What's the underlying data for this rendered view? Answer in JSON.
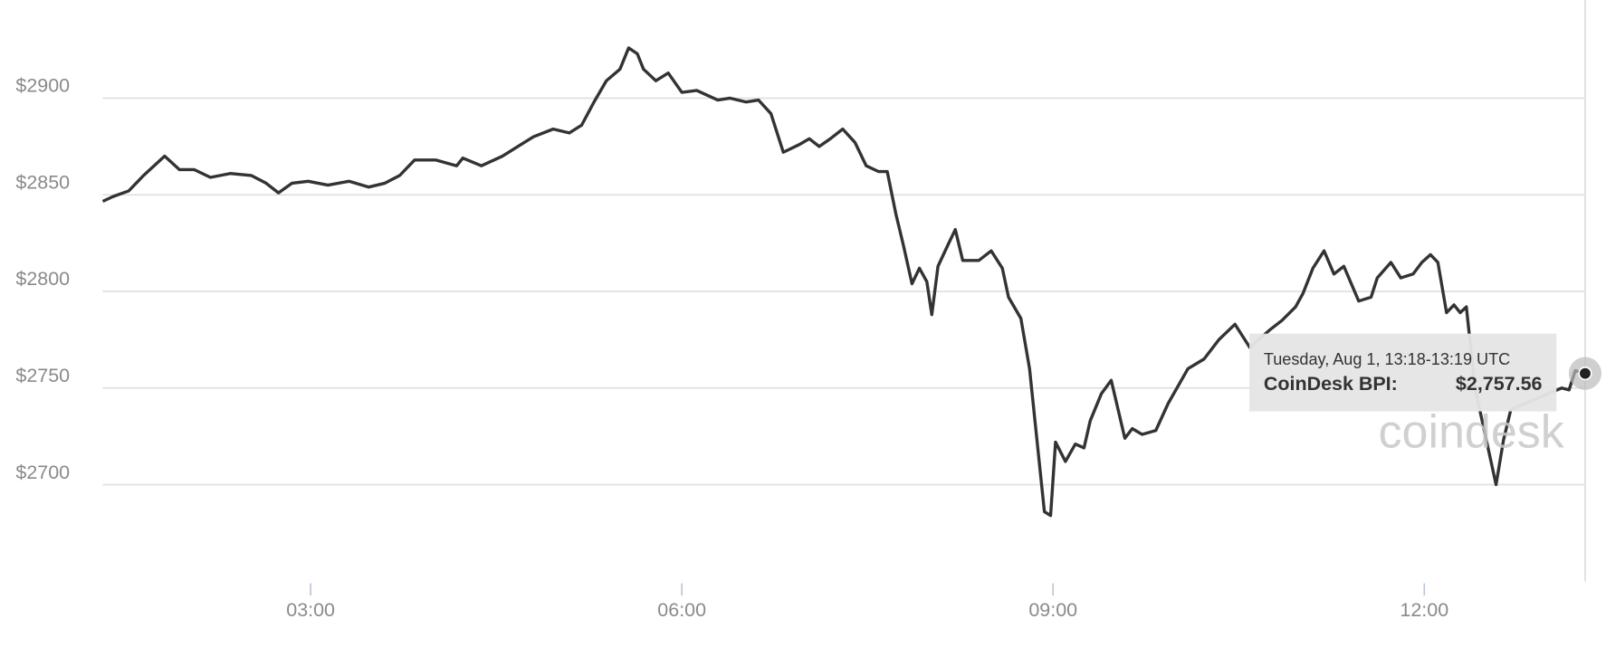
{
  "chart_data": {
    "type": "line",
    "x": [
      1.32,
      1.4,
      1.53,
      1.65,
      1.82,
      1.94,
      2.06,
      2.19,
      2.35,
      2.52,
      2.64,
      2.74,
      2.85,
      2.98,
      3.14,
      3.31,
      3.47,
      3.6,
      3.72,
      3.84,
      4.01,
      4.18,
      4.23,
      4.38,
      4.55,
      4.7,
      4.8,
      4.96,
      5.09,
      5.19,
      5.29,
      5.39,
      5.5,
      5.57,
      5.64,
      5.69,
      5.79,
      5.89,
      6.0,
      6.12,
      6.29,
      6.39,
      6.52,
      6.62,
      6.72,
      6.82,
      6.95,
      7.03,
      7.11,
      7.2,
      7.3,
      7.4,
      7.49,
      7.59,
      7.66,
      7.73,
      7.79,
      7.86,
      7.92,
      7.98,
      8.02,
      8.07,
      8.15,
      8.21,
      8.27,
      8.4,
      8.5,
      8.59,
      8.64,
      8.74,
      8.81,
      8.87,
      8.93,
      8.98,
      9.02,
      9.1,
      9.18,
      9.25,
      9.3,
      9.39,
      9.47,
      9.58,
      9.64,
      9.72,
      9.83,
      9.93,
      10.09,
      10.22,
      10.34,
      10.47,
      10.52,
      10.59,
      10.75,
      10.85,
      10.96,
      11.02,
      11.1,
      11.19,
      11.27,
      11.35,
      11.47,
      11.57,
      11.62,
      11.73,
      11.81,
      11.91,
      11.98,
      12.05,
      12.11,
      12.18,
      12.24,
      12.29,
      12.34,
      12.41,
      12.58,
      12.64,
      12.7,
      13.11,
      13.17,
      13.22,
      13.3
    ],
    "series": [
      {
        "name": "CoinDesk BPI",
        "color": "#333333",
        "values": [
          2846.6,
          2849,
          2852,
          2860,
          2870,
          2863,
          2863,
          2859,
          2861,
          2860,
          2856,
          2851,
          2856,
          2857,
          2855,
          2857,
          2854,
          2856,
          2860,
          2868,
          2868,
          2865,
          2869,
          2865,
          2870,
          2876,
          2880,
          2884,
          2882,
          2886,
          2898,
          2909,
          2915,
          2926,
          2923,
          2915,
          2909,
          2913,
          2903,
          2904,
          2899,
          2900,
          2898,
          2899,
          2892,
          2872,
          2876,
          2879,
          2875,
          2879,
          2884,
          2877,
          2865,
          2862,
          2862,
          2840,
          2824,
          2804,
          2812,
          2805,
          2788,
          2813,
          2824,
          2832,
          2816,
          2816,
          2821,
          2812,
          2797,
          2786,
          2760,
          2723,
          2686,
          2684,
          2722,
          2712,
          2721,
          2719,
          2733,
          2747,
          2754,
          2724,
          2729,
          2726,
          2728,
          2742,
          2760,
          2765,
          2775,
          2783,
          2778,
          2771,
          2780,
          2785,
          2792,
          2799,
          2812,
          2821,
          2809,
          2813,
          2795,
          2797,
          2807,
          2815,
          2807,
          2809,
          2815,
          2819,
          2815,
          2789,
          2793,
          2789,
          2792,
          2750,
          2700,
          2723,
          2739,
          2750,
          2749,
          2759,
          2757.56
        ]
      }
    ],
    "xlim": [
      1.32,
      13.3
    ],
    "xticks": [
      {
        "value": 3,
        "label": "03:00"
      },
      {
        "value": 6,
        "label": "06:00"
      },
      {
        "value": 9,
        "label": "09:00"
      },
      {
        "value": 12,
        "label": "12:00"
      }
    ],
    "ylim": [
      2650,
      2950
    ],
    "yticks": [
      {
        "value": 2700,
        "label": "$2700"
      },
      {
        "value": 2750,
        "label": "$2750"
      },
      {
        "value": 2800,
        "label": "$2800"
      },
      {
        "value": 2850,
        "label": "$2850"
      },
      {
        "value": 2900,
        "label": "$2900"
      }
    ],
    "grid": true,
    "watermark": "coindesk",
    "tooltip": {
      "date": "Tuesday, Aug 1, 13:18-13:19 UTC",
      "label": "CoinDesk BPI:",
      "value": "$2,757.56"
    }
  }
}
